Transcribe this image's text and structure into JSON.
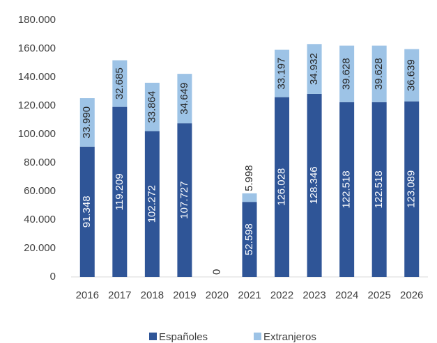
{
  "chart_data": {
    "type": "stacked_bar",
    "categories": [
      "2016",
      "2017",
      "2018",
      "2019",
      "2020",
      "2021",
      "2022",
      "2023",
      "2024",
      "2025",
      "2026"
    ],
    "series": [
      {
        "name": "Españoles",
        "color": "#2f5597",
        "values": [
          91348,
          119209,
          102272,
          107727,
          0,
          52598,
          126028,
          128346,
          122518,
          122518,
          123089
        ],
        "value_labels": [
          "91.348",
          "119.209",
          "102.272",
          "107.727",
          "0",
          "52.598",
          "126.028",
          "128.346",
          "122.518",
          "122.518",
          "123.089"
        ]
      },
      {
        "name": "Extranjeros",
        "color": "#9dc3e6",
        "values": [
          33990,
          32685,
          33864,
          34649,
          null,
          5998,
          33197,
          34932,
          39628,
          39628,
          36639
        ],
        "value_labels": [
          "33.990",
          "32.685",
          "33.864",
          "34.649",
          null,
          "5.998",
          "33.197",
          "34.932",
          "39.628",
          "39.628",
          "36.639"
        ]
      }
    ],
    "ylim": [
      0,
      180000
    ],
    "yticks": [
      0,
      {
        "value": 20000,
        "label": "20.000"
      },
      {
        "value": 40000,
        "label": "40.000"
      },
      {
        "value": 60000,
        "label": "60.000"
      },
      {
        "value": 80000,
        "label": "80.000"
      },
      {
        "value": 100000,
        "label": "100.000"
      },
      {
        "value": 120000,
        "label": "120.000"
      },
      {
        "value": 140000,
        "label": "140.000"
      },
      {
        "value": 160000,
        "label": "160.000"
      },
      {
        "value": 180000,
        "label": "180.000"
      }
    ],
    "legend": "bottom",
    "grid": false
  }
}
